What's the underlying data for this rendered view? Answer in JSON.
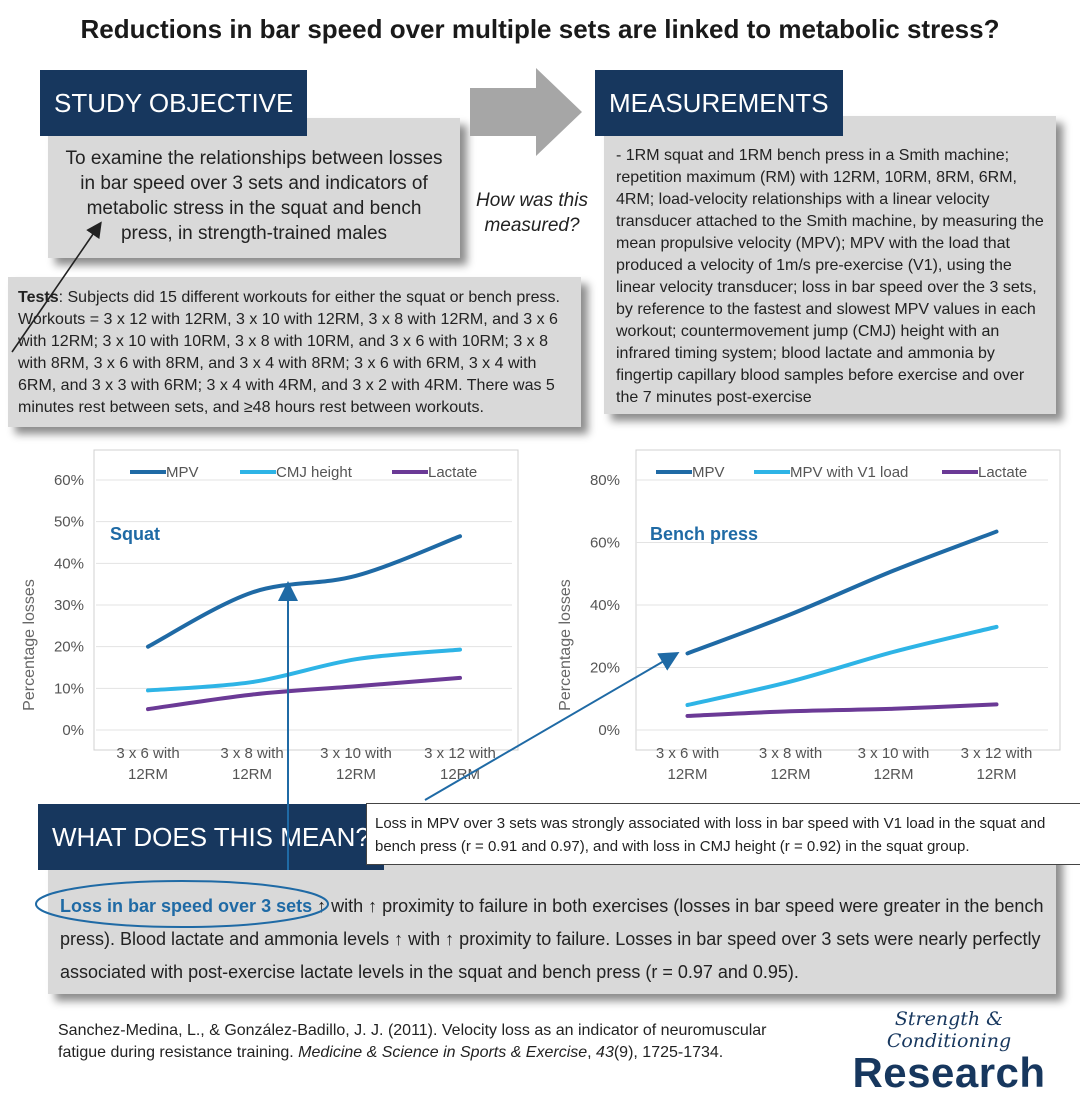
{
  "title": "Reductions in bar speed over multiple sets are linked to metabolic stress?",
  "objective": {
    "header": "STUDY OBJECTIVE",
    "text": "To examine the relationships between losses in bar speed over 3 sets and indicators of metabolic stress in the squat and bench press, in strength-trained males"
  },
  "question": "How was this measured?",
  "measurements": {
    "header": "MEASUREMENTS",
    "text": "- 1RM squat and 1RM bench press in a Smith machine; repetition maximum (RM) with 12RM, 10RM, 8RM, 6RM, 4RM; load-velocity relationships with a linear velocity transducer attached to the Smith machine, by measuring the mean propulsive velocity (MPV); MPV with the load that produced a velocity of 1m/s pre-exercise (V1), using the linear velocity transducer; loss in bar speed over the 3 sets, by reference to the fastest and slowest MPV values in each workout; countermovement jump (CMJ) height with an infrared timing system; blood lactate and ammonia by fingertip capillary blood samples before exercise and over the 7 minutes post-exercise"
  },
  "tests": {
    "label": "Tests",
    "text": ": Subjects did 15 different workouts for either the squat or bench press. Workouts = 3 x 12 with 12RM, 3 x 10 with 12RM, 3 x 8 with 12RM, and 3 x 6 with 12RM; 3 x 10 with 10RM, 3 x 8 with 10RM, and 3 x 6 with 10RM; 3 x 8 with 8RM, 3 x 6 with 8RM, and 3 x 4 with 8RM; 3 x 6 with 6RM, 3 x 4 with 6RM, and 3 x 3 with 6RM; 3 x 4 with 4RM, and 3 x 2 with 4RM. There was 5 minutes rest between sets, and ≥48 hours rest between workouts."
  },
  "colors": {
    "mpv": "#1f6aa5",
    "cmj": "#2eb4e6",
    "lactate": "#6b3a96",
    "navy": "#17375e"
  },
  "chart_data": [
    {
      "type": "line",
      "label": "Squat",
      "ylabel": "Percentage losses",
      "ylim": [
        0,
        60
      ],
      "yticks": [
        "0%",
        "10%",
        "20%",
        "30%",
        "40%",
        "50%",
        "60%"
      ],
      "categories": [
        "3 x 6 with 12RM",
        "3 x 8 with 12RM",
        "3 x 10 with 12RM",
        "3 x 12 with 12RM"
      ],
      "category_lines": [
        [
          "3 x 6 with",
          "12RM"
        ],
        [
          "3 x 8 with",
          "12RM"
        ],
        [
          "3 x 10 with",
          "12RM"
        ],
        [
          "3 x 12 with",
          "12RM"
        ]
      ],
      "legend": "top",
      "series": [
        {
          "name": "MPV",
          "values": [
            20,
            33,
            37,
            46.5
          ],
          "color": "#1f6aa5"
        },
        {
          "name": "CMJ height",
          "values": [
            9.5,
            11.5,
            17,
            19.3
          ],
          "color": "#2eb4e6"
        },
        {
          "name": "Lactate",
          "values": [
            5,
            8.5,
            10.5,
            12.5
          ],
          "color": "#6b3a96"
        }
      ]
    },
    {
      "type": "line",
      "label": "Bench press",
      "ylabel": "Percentage losses",
      "ylim": [
        0,
        80
      ],
      "yticks": [
        "0%",
        "20%",
        "40%",
        "60%",
        "80%"
      ],
      "categories": [
        "3 x 6 with 12RM",
        "3 x 8 with 12RM",
        "3 x 10 with 12RM",
        "3 x 12 with 12RM"
      ],
      "category_lines": [
        [
          "3 x 6 with",
          "12RM"
        ],
        [
          "3 x 8 with",
          "12RM"
        ],
        [
          "3 x 10 with",
          "12RM"
        ],
        [
          "3 x 12 with",
          "12RM"
        ]
      ],
      "legend": "top",
      "series": [
        {
          "name": "MPV",
          "values": [
            24.5,
            37,
            51,
            63.5
          ],
          "color": "#1f6aa5"
        },
        {
          "name": "MPV with V1 load",
          "values": [
            8,
            15.5,
            25,
            33
          ],
          "color": "#2eb4e6"
        },
        {
          "name": "Lactate",
          "values": [
            4.5,
            6,
            6.8,
            8.2
          ],
          "color": "#6b3a96"
        }
      ]
    }
  ],
  "meaning": {
    "header": "WHAT DOES THIS MEAN?",
    "callout": "Loss in MPV over 3 sets was strongly associated with loss in bar speed with V1 load in the squat and bench press (r = 0.91 and 0.97), and with loss in CMJ height (r = 0.92) in the squat group.",
    "highlight": "Loss in bar speed over 3 sets",
    "text": " ↑ with ↑ proximity to failure in both exercises (losses in bar speed were greater in the bench press). Blood lactate and ammonia levels ↑ with ↑ proximity to failure. Losses in bar speed over 3 sets were nearly perfectly associated with post-exercise lactate levels in the squat and bench press (r = 0.97 and 0.95)."
  },
  "reference": {
    "authors": "Sanchez-Medina, L., & González-Badillo, J. J. (2011). Velocity loss as an indicator of neuromuscular fatigue during resistance training. ",
    "journal": "Medicine & Science in Sports & Exercise",
    "sep": ", ",
    "volume": "43",
    "rest": "(9), 1725-1734."
  },
  "logo": {
    "script": "Strength & Conditioning",
    "main": "Research"
  }
}
